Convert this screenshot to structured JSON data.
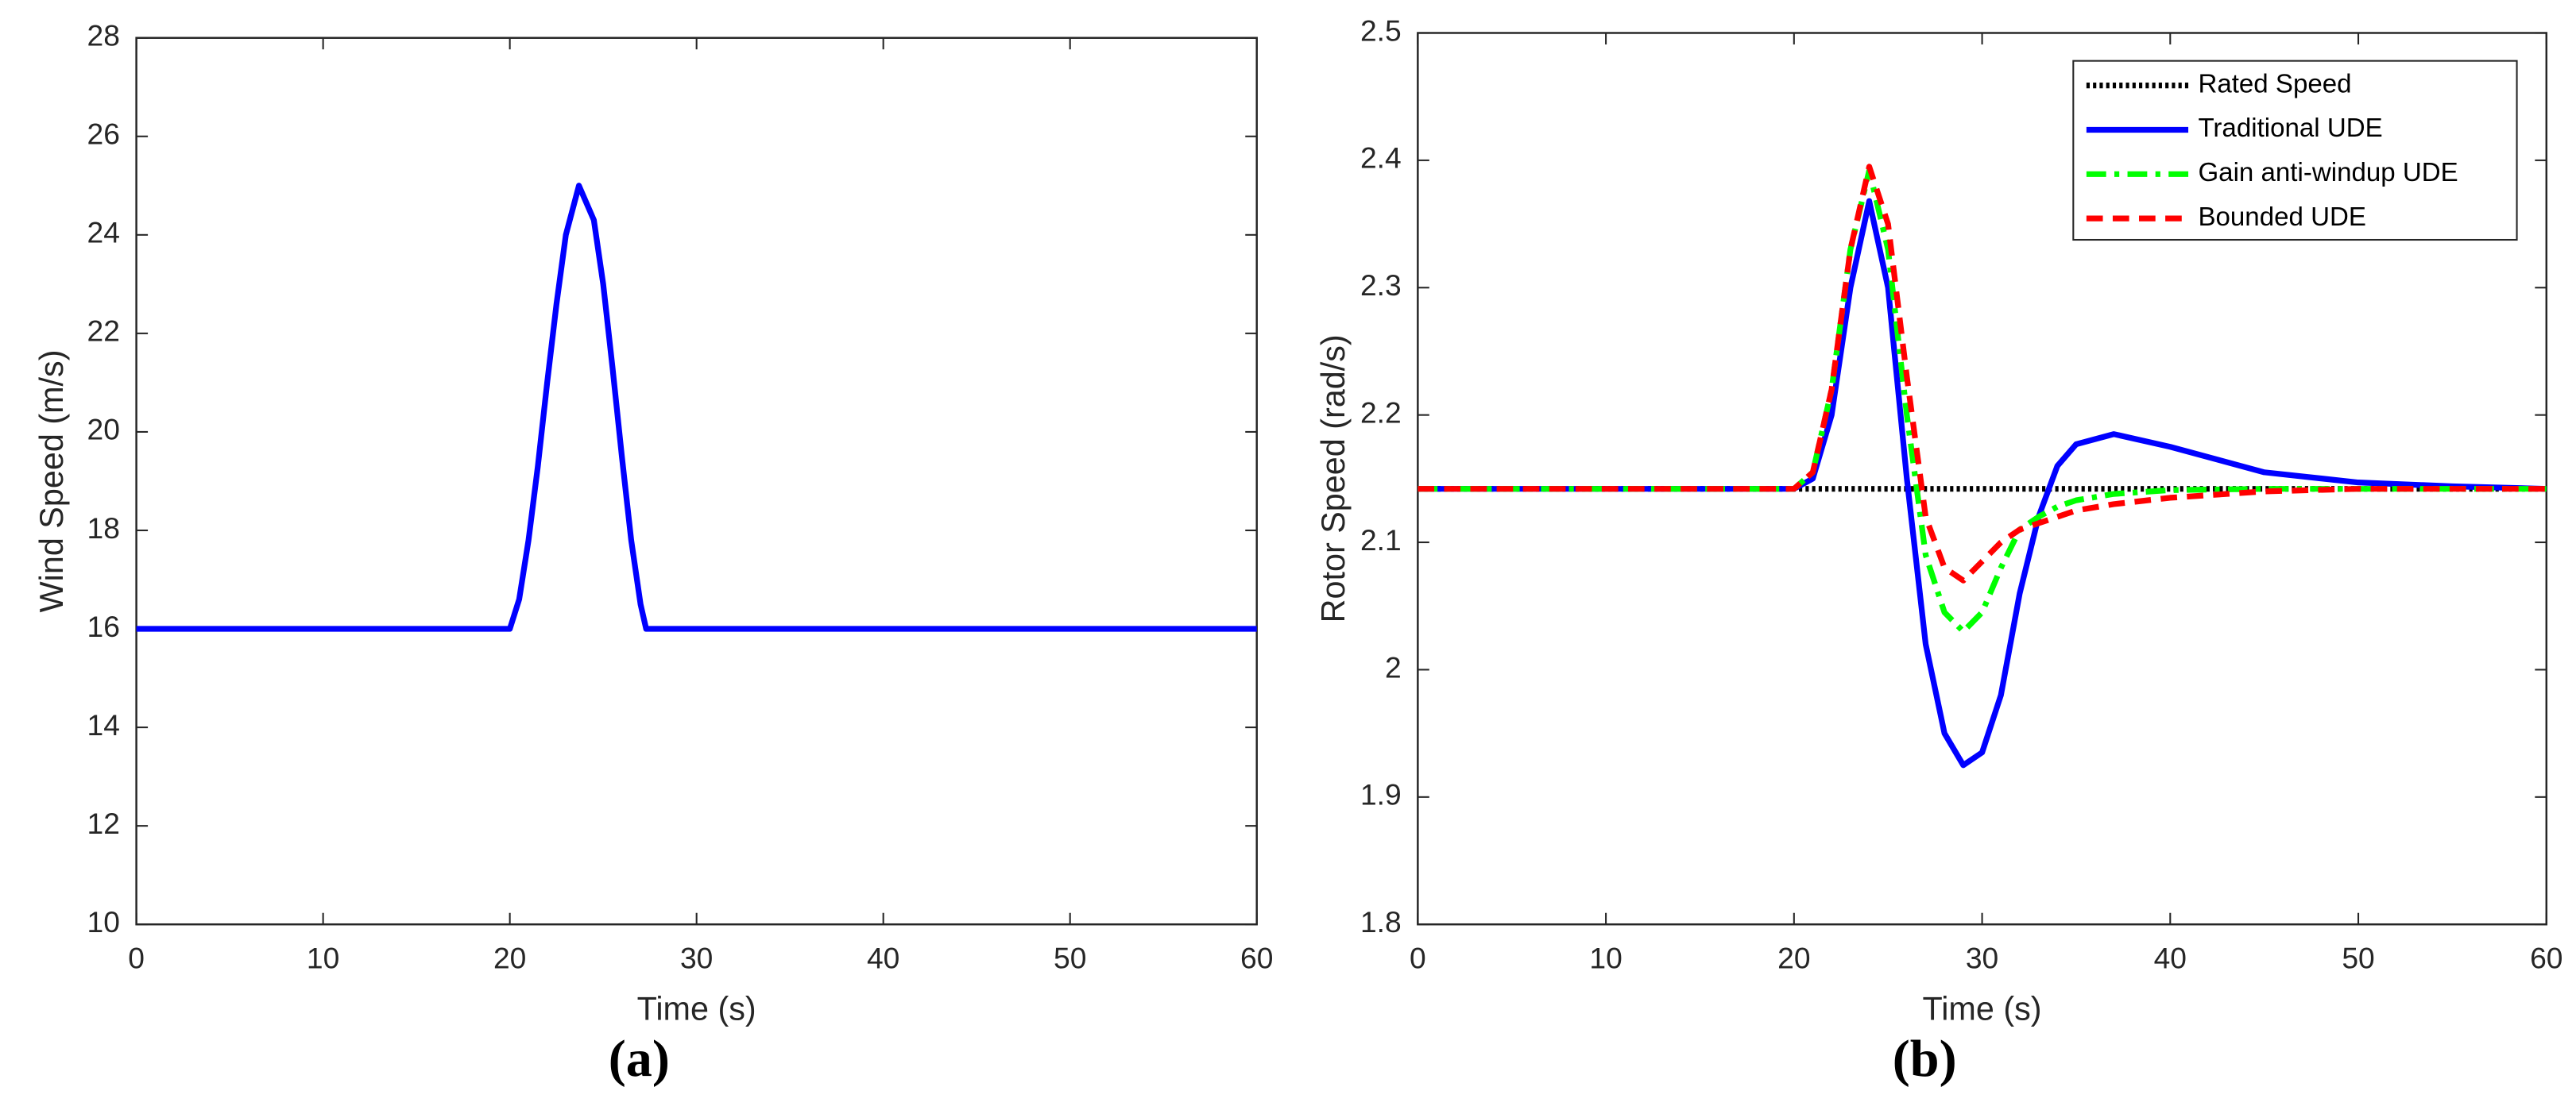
{
  "chart_data": [
    {
      "type": "line",
      "label": "(a)",
      "xlabel": "Time (s)",
      "ylabel": "Wind Speed (m/s)",
      "xlim": [
        0,
        60
      ],
      "xticks": [
        0,
        10,
        20,
        30,
        40,
        50,
        60
      ],
      "ylim": [
        10,
        28
      ],
      "yticks": [
        10,
        12,
        14,
        16,
        18,
        20,
        22,
        24,
        26,
        28
      ],
      "x": [
        0,
        20,
        20.5,
        21,
        21.5,
        22,
        22.5,
        23,
        23.7,
        24.5,
        25,
        25.5,
        26,
        26.5,
        27,
        27.3,
        30,
        40,
        50,
        60
      ],
      "series": [
        {
          "color": "#0000ff",
          "style": "solid",
          "values": [
            16,
            16,
            16.6,
            17.8,
            19.3,
            21,
            22.6,
            24,
            25,
            24.3,
            23,
            21.3,
            19.5,
            17.8,
            16.5,
            16,
            16,
            16,
            16,
            16
          ]
        }
      ]
    },
    {
      "type": "line",
      "label": "(b)",
      "xlabel": "Time (s)",
      "ylabel": "Rotor Speed (rad/s)",
      "xlim": [
        0,
        60
      ],
      "xticks": [
        0,
        10,
        20,
        30,
        40,
        50,
        60
      ],
      "ylim": [
        1.8,
        2.5
      ],
      "yticks": [
        1.8,
        1.9,
        2,
        2.1,
        2.2,
        2.3,
        2.4,
        2.5
      ],
      "legend": "upper right",
      "x": [
        0,
        20,
        21,
        22,
        23,
        24,
        25,
        26,
        27,
        28,
        29,
        30,
        31,
        32,
        33,
        34,
        35,
        37,
        40,
        45,
        50,
        55,
        60
      ],
      "series": [
        {
          "name": "Rated Speed",
          "color": "#000000",
          "style": "dotted",
          "values": [
            2.142,
            2.142,
            2.142,
            2.142,
            2.142,
            2.142,
            2.142,
            2.142,
            2.142,
            2.142,
            2.142,
            2.142,
            2.142,
            2.142,
            2.142,
            2.142,
            2.142,
            2.142,
            2.142,
            2.142,
            2.142,
            2.142,
            2.142
          ]
        },
        {
          "name": "Traditional UDE",
          "color": "#0000ff",
          "style": "solid",
          "values": [
            2.142,
            2.142,
            2.15,
            2.2,
            2.3,
            2.368,
            2.3,
            2.15,
            2.02,
            1.95,
            1.925,
            1.935,
            1.98,
            2.06,
            2.12,
            2.16,
            2.177,
            2.185,
            2.175,
            2.155,
            2.147,
            2.144,
            2.142
          ]
        },
        {
          "name": "Gain anti-windup UDE",
          "color": "#00ff00",
          "style": "dashdot",
          "values": [
            2.142,
            2.142,
            2.155,
            2.22,
            2.33,
            2.392,
            2.33,
            2.2,
            2.09,
            2.045,
            2.03,
            2.045,
            2.08,
            2.11,
            2.12,
            2.128,
            2.133,
            2.138,
            2.141,
            2.142,
            2.142,
            2.142,
            2.142
          ]
        },
        {
          "name": "Bounded UDE",
          "color": "#ff0000",
          "style": "dashed",
          "values": [
            2.142,
            2.142,
            2.155,
            2.22,
            2.33,
            2.395,
            2.35,
            2.23,
            2.12,
            2.08,
            2.07,
            2.085,
            2.1,
            2.11,
            2.115,
            2.12,
            2.125,
            2.13,
            2.135,
            2.14,
            2.142,
            2.142,
            2.142
          ]
        }
      ]
    }
  ]
}
